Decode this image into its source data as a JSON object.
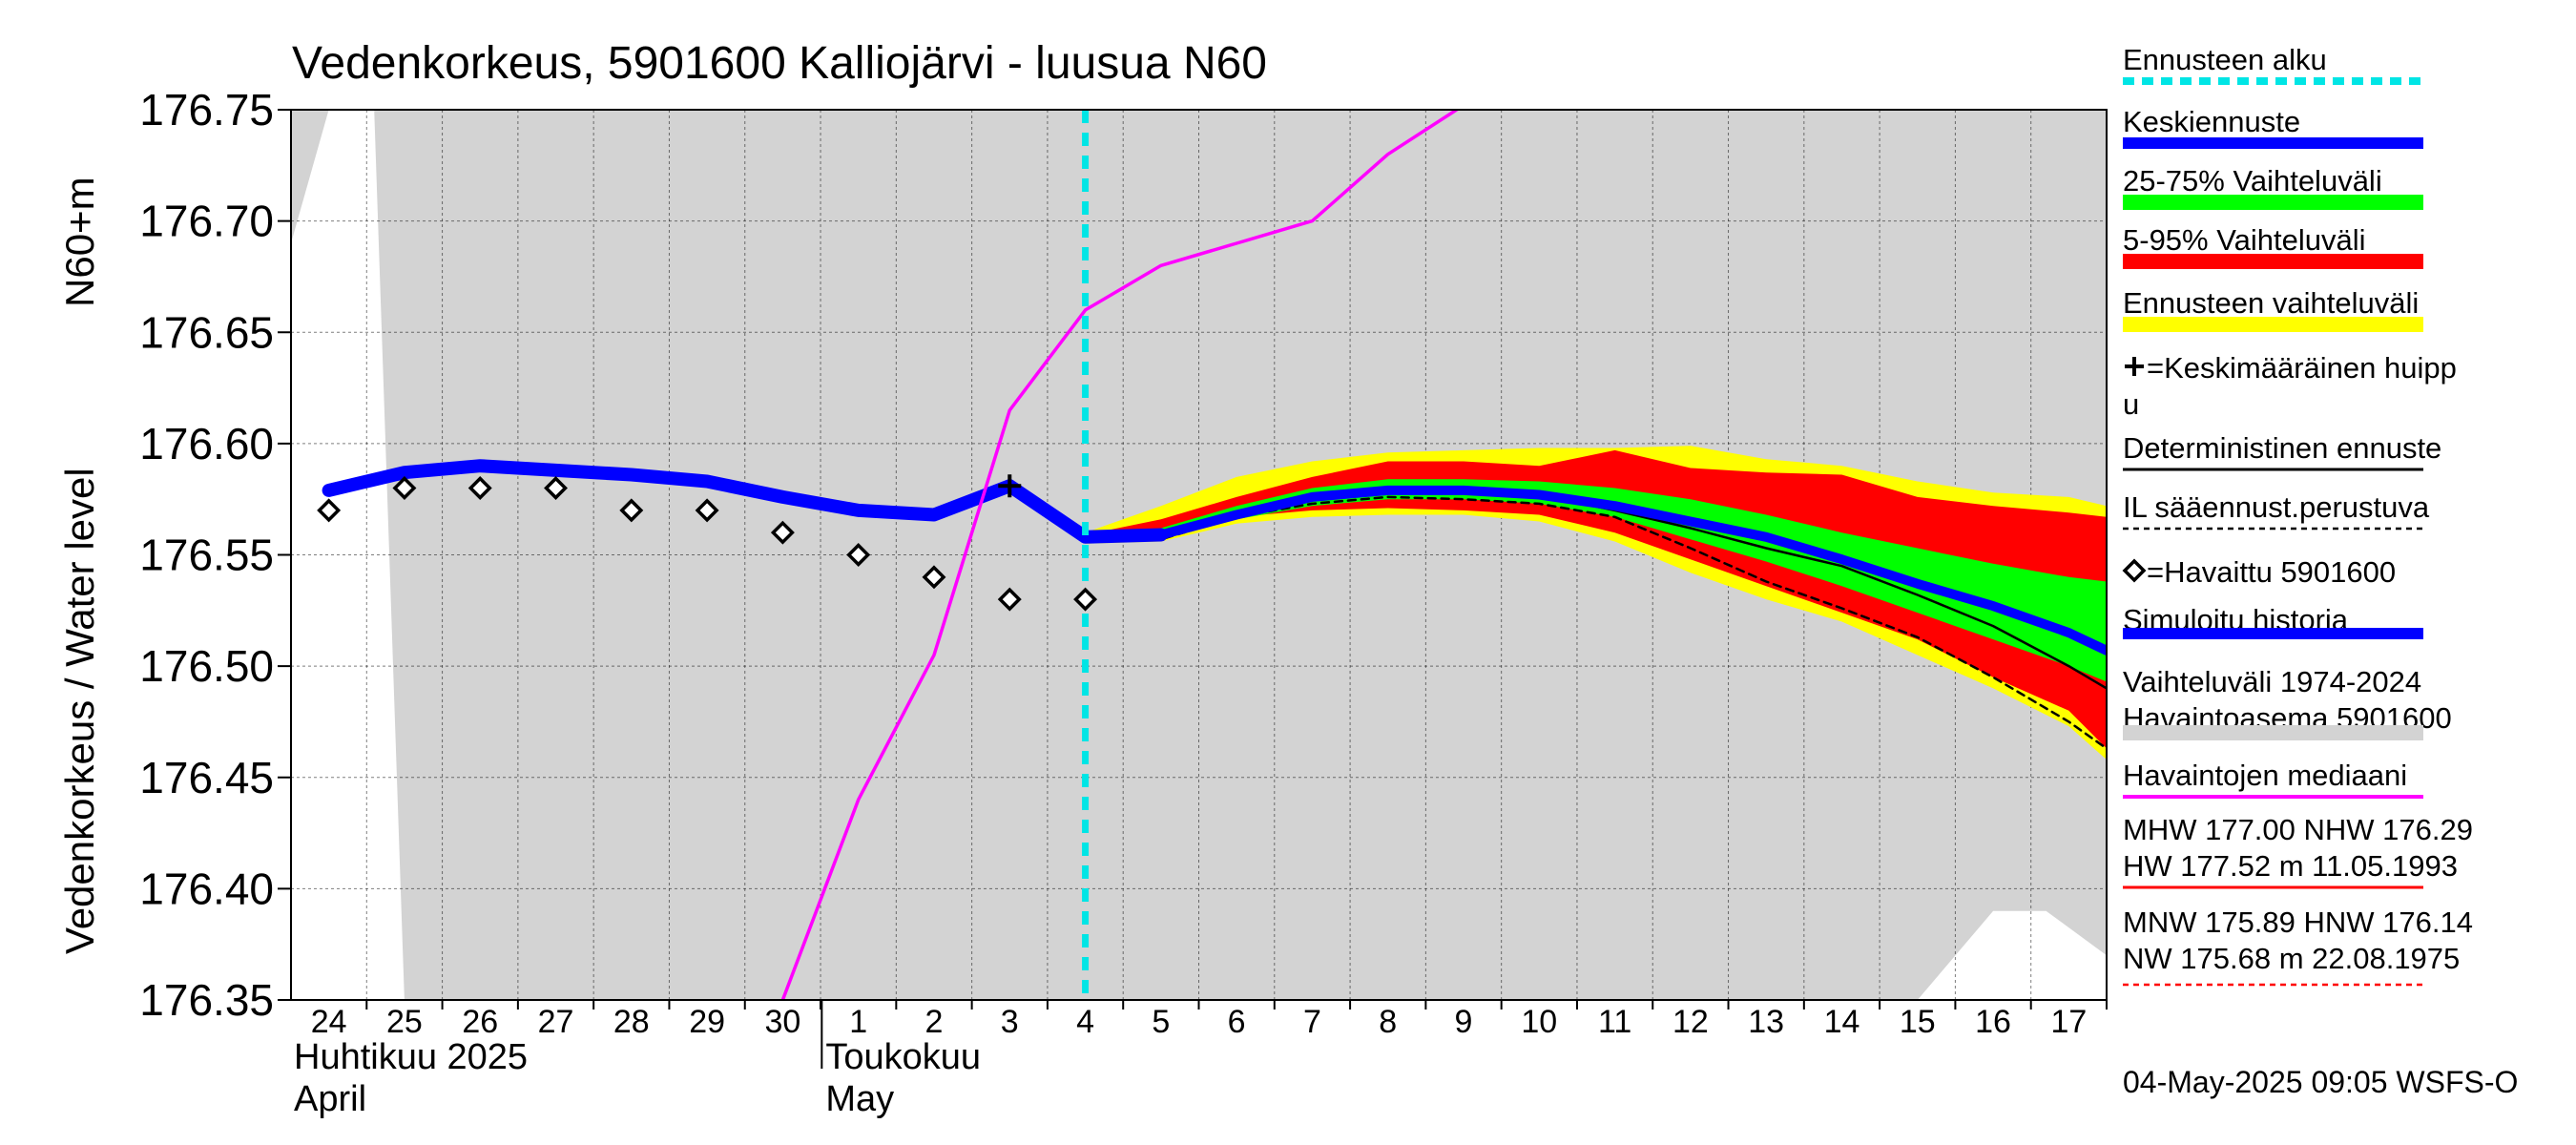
{
  "chart_data": {
    "type": "line",
    "title": "Vedenkorkeus, 5901600 Kalliojärvi - luusua N60",
    "ylabel_left": "Vedenkorkeus / Water level",
    "ylabel_unit": "N60+m",
    "ylim": [
      176.35,
      176.75
    ],
    "yticks": [
      "176.75",
      "176.70",
      "176.65",
      "176.60",
      "176.55",
      "176.50",
      "176.45",
      "176.40",
      "176.35"
    ],
    "ytick_values": [
      176.75,
      176.7,
      176.65,
      176.6,
      176.55,
      176.5,
      176.45,
      176.4,
      176.35
    ],
    "xlim_days": [
      -0.5,
      23.5
    ],
    "x_day_labels": [
      "24",
      "25",
      "26",
      "27",
      "28",
      "29",
      "30",
      "1",
      "2",
      "3",
      "4",
      "5",
      "6",
      "7",
      "8",
      "9",
      "10",
      "11",
      "12",
      "13",
      "14",
      "15",
      "16",
      "17"
    ],
    "month_labels": [
      {
        "fi": "Huhtikuu  2025",
        "en": "April",
        "start_day": -0.5
      },
      {
        "fi": "Toukokuu",
        "en": "May",
        "start_day": 7.5
      }
    ],
    "forecast_start_day": 10,
    "grid": true,
    "legend_position": "right",
    "legend": [
      {
        "label": "Ennusteen alku",
        "color": "#00e5e5",
        "style": "dashed-thick"
      },
      {
        "label": "Keskiennuste",
        "color": "#0000ff",
        "style": "thick"
      },
      {
        "label": "25-75% Vaihteluväli",
        "color": "#00ff00",
        "style": "band"
      },
      {
        "label": "5-95% Vaihteluväli",
        "color": "#ff0000",
        "style": "band"
      },
      {
        "label": "Ennusteen vaihteluväli",
        "color": "#ffff00",
        "style": "band"
      },
      {
        "label": "=Keskimääräinen huippu",
        "color": "#000000",
        "style": "plus"
      },
      {
        "label": "Deterministinen ennuste",
        "color": "#000000",
        "style": "thin"
      },
      {
        "label": "IL sääennust.perustuva",
        "color": "#000000",
        "style": "dashed"
      },
      {
        "label": "=Havaittu 5901600",
        "color": "#000000",
        "style": "diamond"
      },
      {
        "label": "Simuloitu historia",
        "color": "#0000ff",
        "style": "thick"
      },
      {
        "label": "Vaihteluväli 1974-2024\n Havaintoasema 5901600",
        "color": "#d3d3d3",
        "style": "band"
      },
      {
        "label": "Havaintojen mediaani",
        "color": "#ff00ff",
        "style": "medium"
      },
      {
        "label": "MHW 177.00 NHW 176.29\nHW 177.52 m 11.05.1993",
        "color": "#ff0000",
        "style": "thin"
      },
      {
        "label": "MNW 175.89 HNW 176.14\nNW 175.68 m 22.08.1975",
        "color": "#ff0000",
        "style": "dashed"
      }
    ],
    "series": [
      {
        "name": "Simuloitu historia",
        "color": "#0000ff",
        "x": [
          0,
          1,
          2,
          3,
          4,
          5,
          6,
          7,
          8,
          9,
          10,
          11
        ],
        "y": [
          176.579,
          176.587,
          176.59,
          176.588,
          176.586,
          176.583,
          176.576,
          176.57,
          176.568,
          176.581,
          176.558,
          176.559
        ]
      },
      {
        "name": "Keskiennuste",
        "color": "#0000ff",
        "x": [
          10,
          11,
          12,
          13,
          14,
          15,
          16,
          17,
          18,
          19,
          20,
          21,
          22,
          23,
          23.5
        ],
        "y": [
          176.558,
          176.559,
          176.568,
          176.576,
          176.579,
          176.579,
          176.577,
          176.572,
          176.565,
          176.558,
          176.548,
          176.537,
          176.527,
          176.515,
          176.507
        ]
      },
      {
        "name": "Deterministinen ennuste",
        "color": "#000000",
        "x": [
          10,
          11,
          12,
          13,
          14,
          15,
          16,
          17,
          18,
          19,
          20,
          21,
          22,
          23,
          23.5
        ],
        "y": [
          176.557,
          176.558,
          176.569,
          176.577,
          176.58,
          176.58,
          176.577,
          176.57,
          176.562,
          176.553,
          176.545,
          176.532,
          176.518,
          176.5,
          176.49
        ]
      },
      {
        "name": "IL sääennust.perustuva",
        "color": "#000000",
        "x": [
          10,
          11,
          12,
          13,
          14,
          15,
          16,
          17,
          18,
          19,
          20,
          21,
          22,
          23,
          23.5
        ],
        "y": [
          176.557,
          176.557,
          176.567,
          176.573,
          176.576,
          176.575,
          176.573,
          176.567,
          176.553,
          176.538,
          176.526,
          176.513,
          176.495,
          176.475,
          176.463
        ]
      },
      {
        "name": "Havaintojen mediaani",
        "color": "#ff00ff",
        "x": [
          6.0,
          7,
          8,
          9,
          10,
          11,
          12,
          13,
          14,
          15,
          16
        ],
        "y": [
          176.35,
          176.44,
          176.505,
          176.615,
          176.66,
          176.68,
          176.69,
          176.7,
          176.73,
          176.752,
          176.76
        ]
      }
    ],
    "bands": [
      {
        "name": "Ennusteen vaihteluväli",
        "color": "#ffff00",
        "x": [
          10,
          11,
          12,
          13,
          14,
          15,
          16,
          17,
          18,
          19,
          20,
          21,
          22,
          23,
          23.5
        ],
        "upper": [
          176.56,
          176.572,
          176.585,
          176.592,
          176.596,
          176.597,
          176.598,
          176.598,
          176.599,
          176.593,
          176.59,
          176.583,
          176.578,
          176.576,
          176.572
        ],
        "lower": [
          176.555,
          176.556,
          176.564,
          176.567,
          176.568,
          176.568,
          176.565,
          176.556,
          176.542,
          176.53,
          176.52,
          176.505,
          176.49,
          176.473,
          176.458
        ]
      },
      {
        "name": "5-95% Vaihteluväli",
        "color": "#ff0000",
        "x": [
          10,
          11,
          12,
          13,
          14,
          15,
          16,
          17,
          18,
          19,
          20,
          21,
          22,
          23,
          23.5
        ],
        "upper": [
          176.559,
          176.566,
          176.576,
          176.585,
          176.592,
          176.592,
          176.59,
          176.597,
          176.589,
          176.587,
          176.586,
          176.576,
          176.572,
          176.569,
          176.567
        ],
        "lower": [
          176.556,
          176.557,
          176.567,
          176.57,
          176.571,
          176.57,
          176.568,
          176.56,
          176.548,
          176.536,
          176.524,
          176.512,
          176.495,
          176.48,
          176.463
        ]
      },
      {
        "name": "25-75% Vaihteluväli",
        "color": "#00ff00",
        "x": [
          10,
          11,
          12,
          13,
          14,
          15,
          16,
          17,
          18,
          19,
          20,
          21,
          22,
          23,
          23.5
        ],
        "upper": [
          176.559,
          176.562,
          176.572,
          176.58,
          176.584,
          176.584,
          176.583,
          176.58,
          176.575,
          176.568,
          176.56,
          176.553,
          176.546,
          176.54,
          176.538
        ],
        "lower": [
          176.557,
          176.558,
          176.566,
          176.572,
          176.575,
          176.575,
          176.573,
          176.567,
          176.557,
          176.547,
          176.536,
          176.524,
          176.512,
          176.5,
          176.493
        ]
      }
    ],
    "history_range_band": {
      "name": "Vaihteluväli 1974-2024 Havaintoasema 5901600",
      "color": "#d3d3d3",
      "x": [
        -0.5,
        0.0,
        0.6,
        1.0,
        21.0,
        22.0,
        22.7,
        23.5
      ],
      "upper": [
        176.75,
        176.75,
        176.75,
        176.75,
        176.75,
        176.75,
        176.75,
        176.75
      ],
      "lower": [
        176.69,
        176.75,
        176.75,
        176.35,
        176.35,
        176.39,
        176.39,
        176.37
      ]
    },
    "observed": {
      "name": "=Havaittu 5901600",
      "x": [
        0,
        1,
        2,
        3,
        4,
        5,
        6,
        7,
        8,
        9,
        10
      ],
      "y": [
        176.57,
        176.58,
        176.58,
        176.58,
        176.57,
        176.57,
        176.56,
        176.55,
        176.54,
        176.53,
        176.53
      ]
    },
    "mean_peak": {
      "x": 9,
      "y": 176.581
    }
  },
  "footer": {
    "timestamp": "04-May-2025 09:05 WSFS-O"
  },
  "colors": {
    "plot_bg": "#d3d3d3",
    "forecast_start": "#00e5e5",
    "mean": "#0000ff",
    "median": "#ff00ff"
  }
}
